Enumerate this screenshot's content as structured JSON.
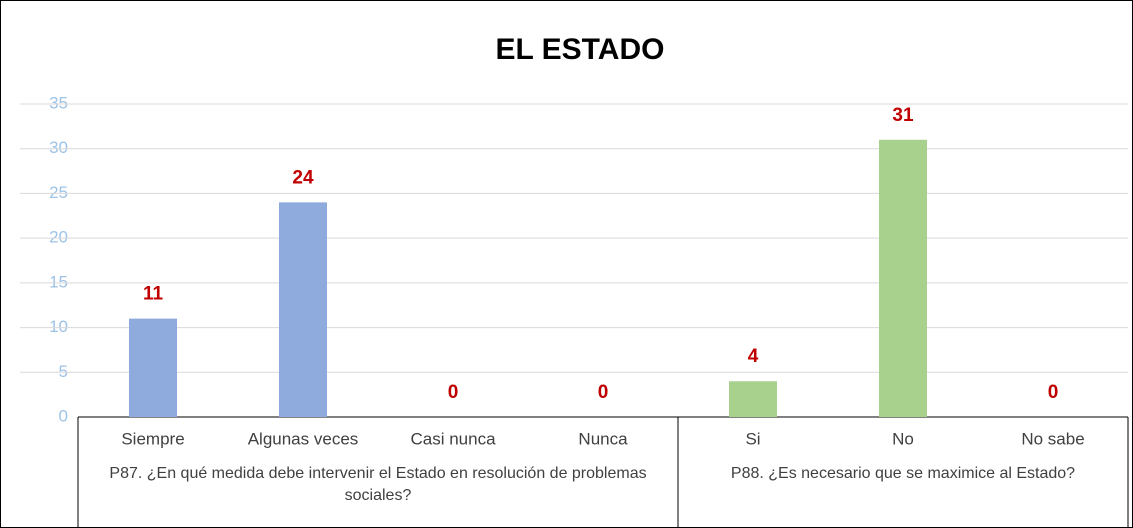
{
  "chart_data": {
    "type": "bar",
    "title": "EL ESTADO",
    "groups": [
      {
        "label": "P87.  ¿En qué medida debe intervenir el Estado en resolución de problemas sociales?",
        "color": "#8faadc",
        "categories": [
          "Siempre",
          "Algunas veces",
          "Casi nunca",
          "Nunca"
        ],
        "values": [
          11,
          24,
          0,
          0
        ]
      },
      {
        "label": "P88.  ¿Es necesario que se maximice al Estado?",
        "color": "#a9d18e",
        "categories": [
          "Si",
          "No",
          "No sabe"
        ],
        "values": [
          4,
          31,
          0
        ]
      }
    ],
    "ylim": [
      0,
      35
    ],
    "yticks": [
      0,
      5,
      10,
      15,
      20,
      25,
      30,
      35
    ],
    "grid": true,
    "value_label_color": "#c00000"
  }
}
